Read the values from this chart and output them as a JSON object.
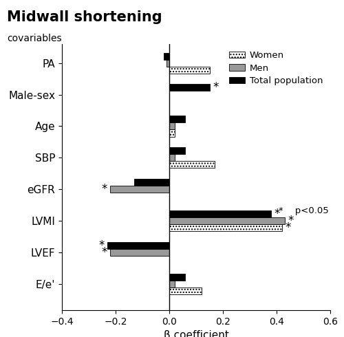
{
  "title": "Midwall shortening",
  "subtitle": "covariables",
  "xlabel": "β coefficient",
  "categories": [
    "PA",
    "Male-sex",
    "Age",
    "SBP",
    "eGFR",
    "LVMI",
    "LVEF",
    "E/e'"
  ],
  "women": [
    0.15,
    0.0,
    0.02,
    0.17,
    0.0,
    0.42,
    0.0,
    0.12
  ],
  "men": [
    -0.01,
    0.0,
    0.02,
    0.02,
    -0.22,
    0.43,
    -0.22,
    0.02
  ],
  "total": [
    -0.02,
    0.15,
    0.06,
    0.06,
    -0.13,
    0.38,
    -0.23,
    0.06
  ],
  "women_sig": [
    false,
    false,
    false,
    false,
    false,
    true,
    false,
    false
  ],
  "men_sig": [
    false,
    false,
    false,
    false,
    true,
    true,
    true,
    false
  ],
  "total_sig": [
    false,
    true,
    false,
    false,
    false,
    true,
    true,
    false
  ],
  "xlim": [
    -0.4,
    0.6
  ],
  "xticks": [
    -0.4,
    -0.2,
    0.0,
    0.2,
    0.4,
    0.6
  ],
  "bar_height": 0.22,
  "figsize": [
    5.0,
    4.9
  ],
  "dpi": 100
}
